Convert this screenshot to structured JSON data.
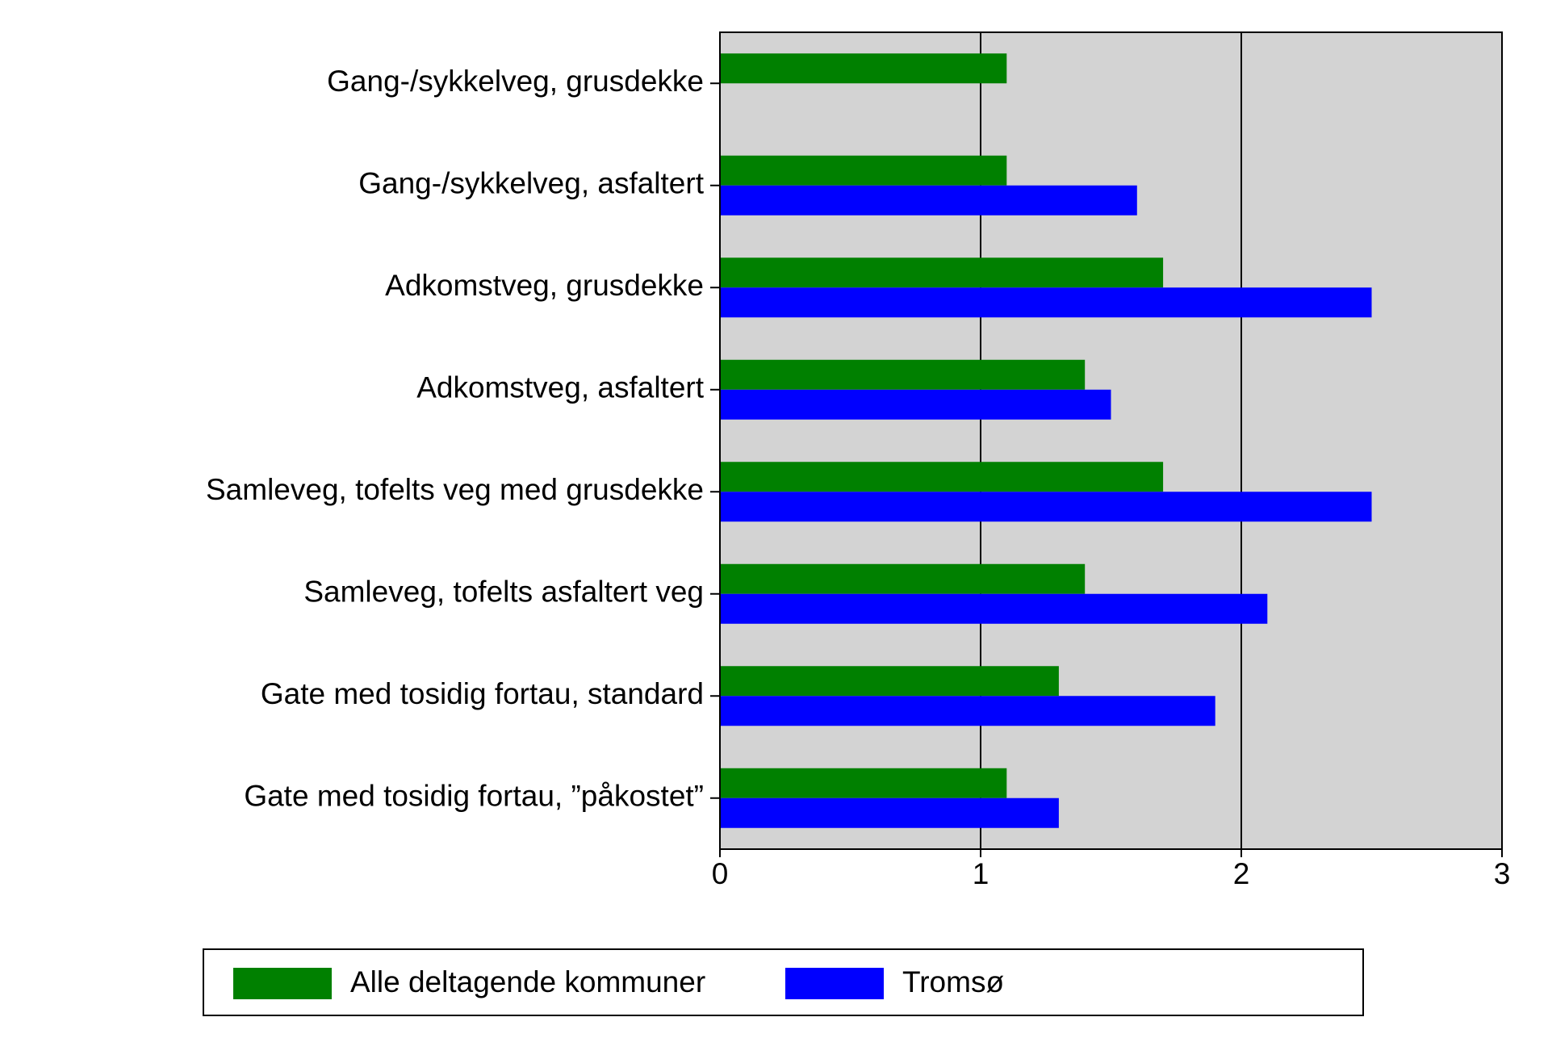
{
  "chart_data": {
    "type": "bar",
    "orientation": "horizontal",
    "categories": [
      "Gang-/sykkelveg, grusdekke",
      "Gang-/sykkelveg, asfaltert",
      "Adkomstveg, grusdekke",
      "Adkomstveg, asfaltert",
      "Samleveg, tofelts veg med grusdekke",
      "Samleveg, tofelts asfaltert veg",
      "Gate med tosidig fortau, standard",
      "Gate med tosidig fortau, ”påkostet”"
    ],
    "series": [
      {
        "name": "Alle deltagende kommuner",
        "color": "#008000",
        "values": [
          1.1,
          1.1,
          1.7,
          1.4,
          1.7,
          1.4,
          1.3,
          1.1
        ]
      },
      {
        "name": "Tromsø",
        "color": "#0000ff",
        "values": [
          null,
          1.6,
          2.5,
          1.5,
          2.5,
          2.1,
          1.9,
          1.3
        ]
      }
    ],
    "xlim": [
      0,
      3
    ],
    "xticks": [
      0,
      1,
      2,
      3
    ],
    "grid": true,
    "background": "#d3d3d3"
  }
}
